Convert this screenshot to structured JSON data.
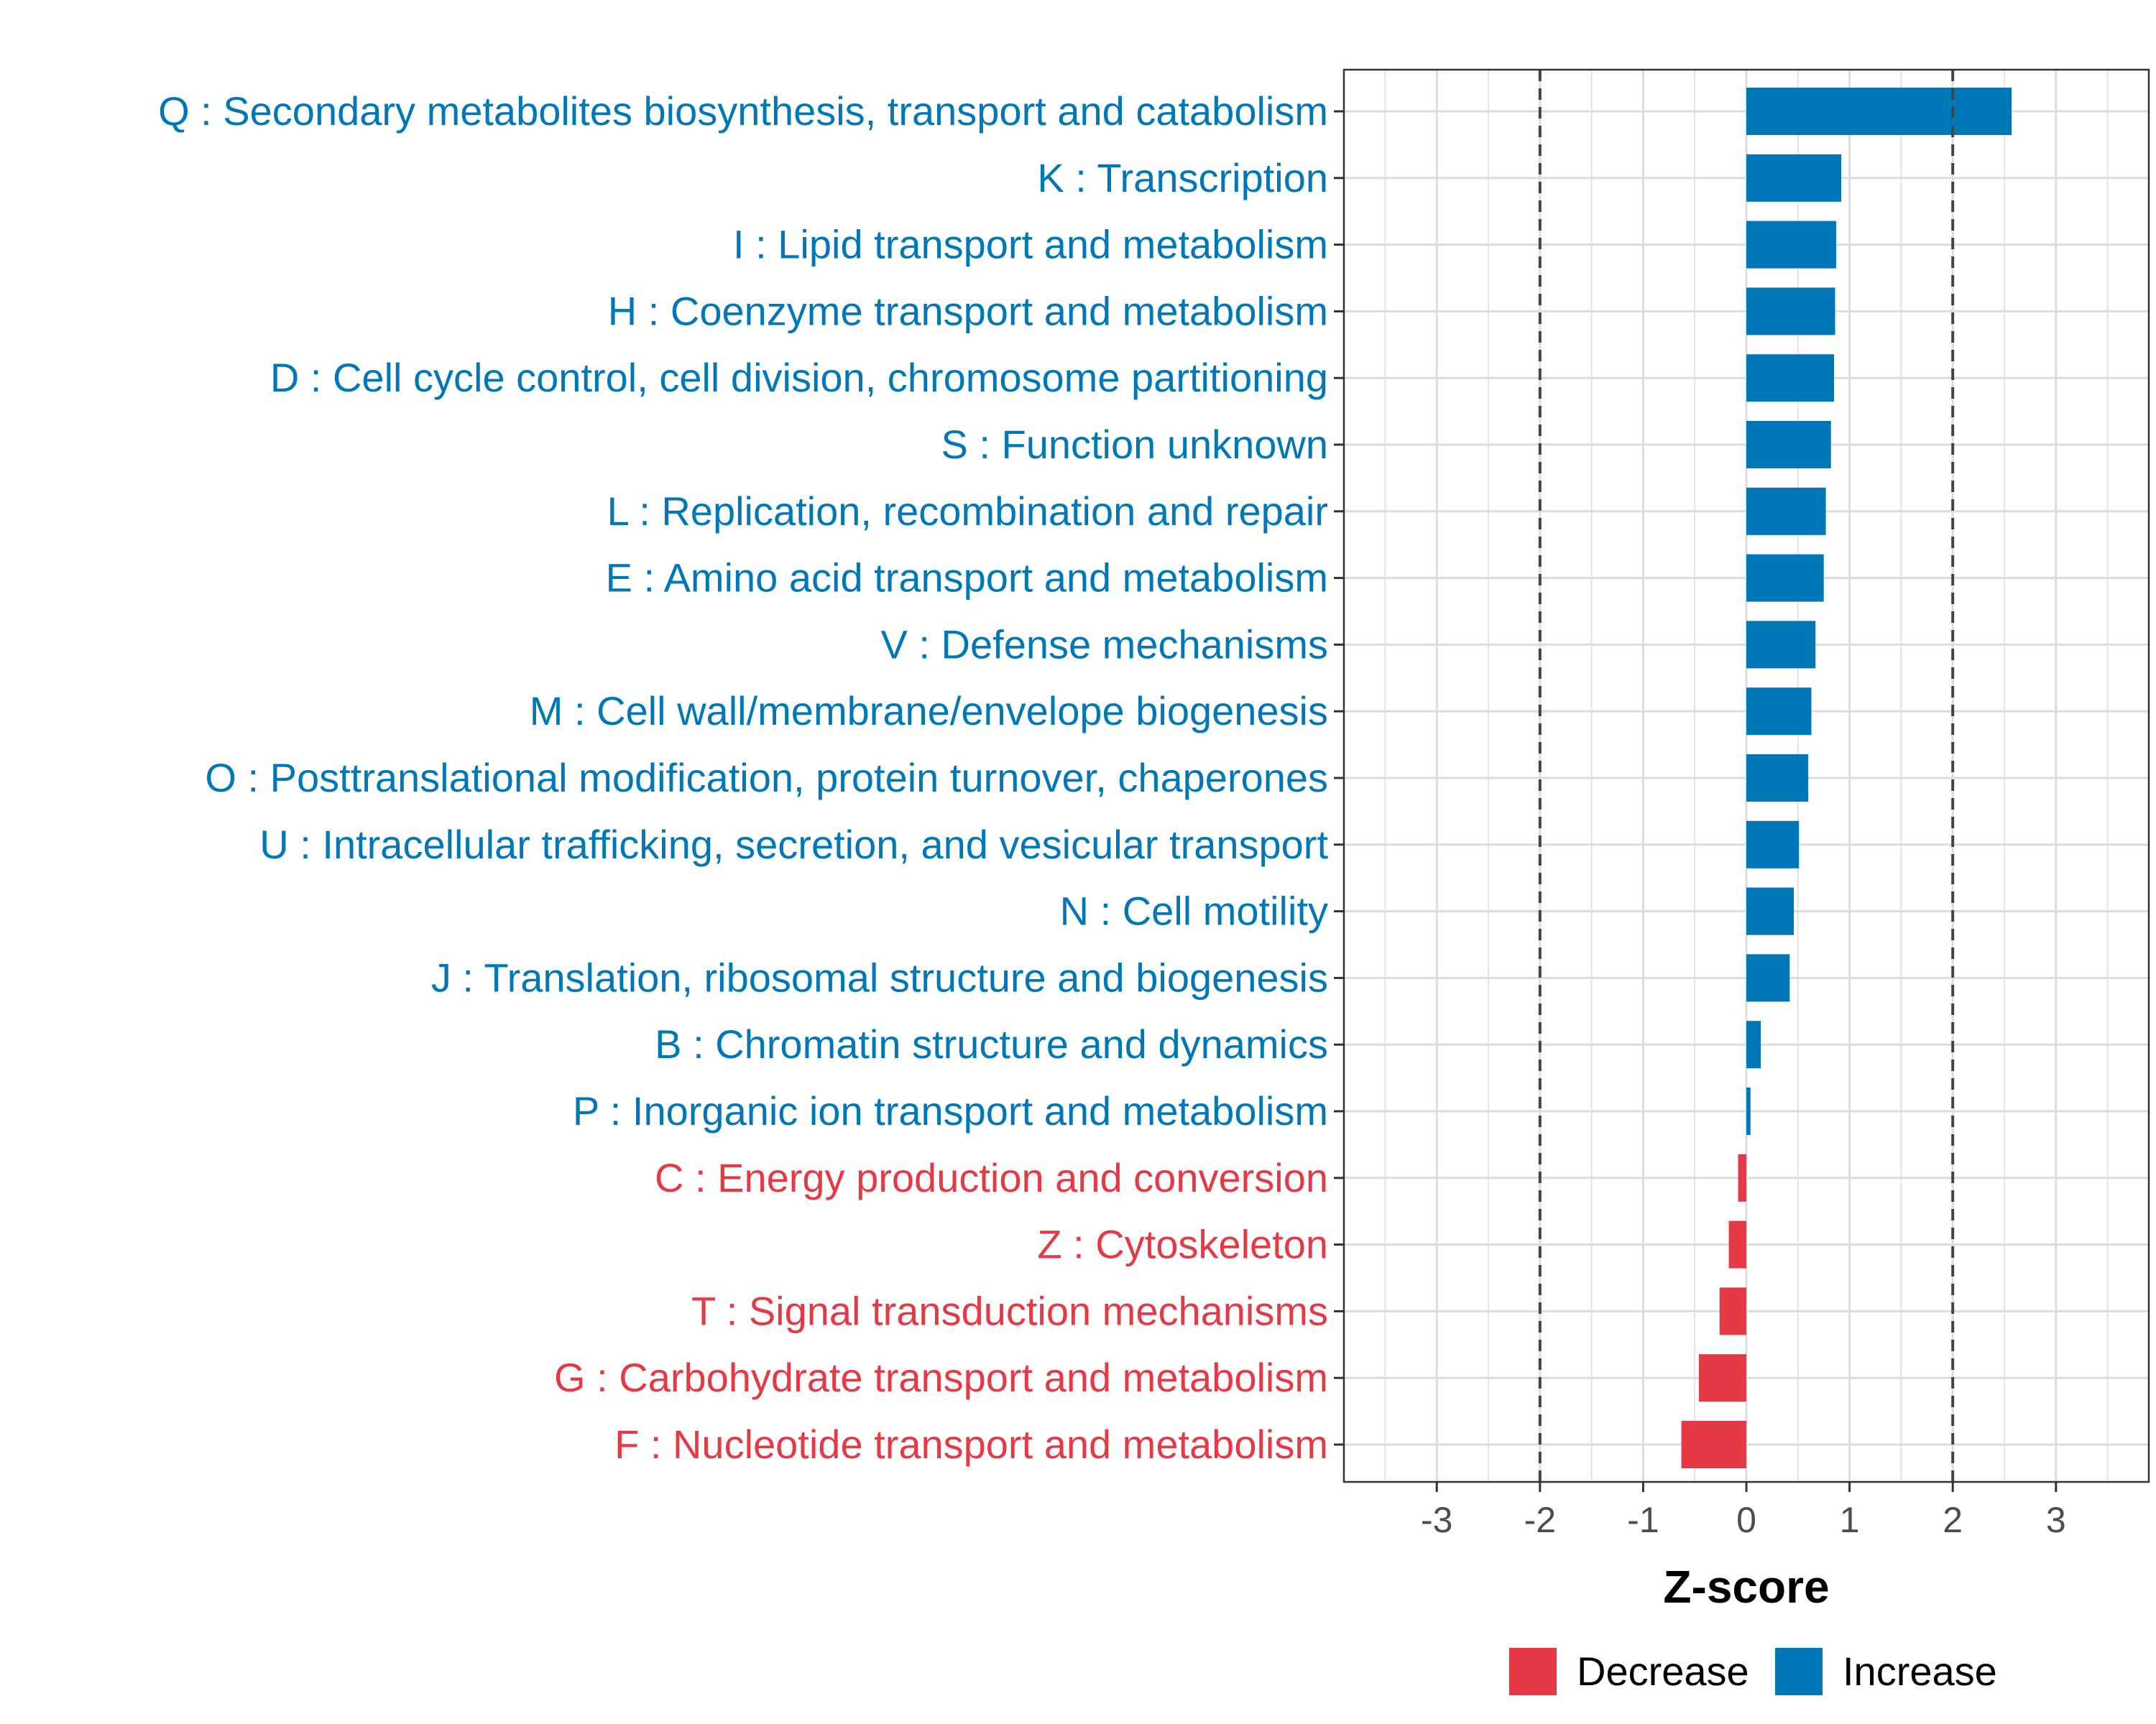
{
  "chart_data": {
    "type": "bar",
    "orientation": "horizontal",
    "title": "",
    "xlabel": "Z-score",
    "ylabel": "",
    "xlim": [
      -3.9,
      3.9
    ],
    "xticks": [
      -3,
      -2,
      -1,
      0,
      1,
      2,
      3
    ],
    "reference_lines": [
      -2,
      2
    ],
    "grid": true,
    "legend_position": "bottom",
    "colors": {
      "Decrease": "#e63946",
      "Increase": "#0077b6"
    },
    "legend": [
      {
        "name": "Decrease",
        "color": "#e63946"
      },
      {
        "name": "Increase",
        "color": "#0077b6"
      }
    ],
    "bars": [
      {
        "label": "Q : Secondary metabolites biosynthesis, transport and catabolism",
        "value": 2.57,
        "direction": "Increase"
      },
      {
        "label": "K : Transcription",
        "value": 0.92,
        "direction": "Increase"
      },
      {
        "label": "I : Lipid transport and metabolism",
        "value": 0.87,
        "direction": "Increase"
      },
      {
        "label": "H : Coenzyme transport and metabolism",
        "value": 0.86,
        "direction": "Increase"
      },
      {
        "label": "D : Cell cycle control, cell division, chromosome partitioning",
        "value": 0.85,
        "direction": "Increase"
      },
      {
        "label": "S : Function unknown",
        "value": 0.82,
        "direction": "Increase"
      },
      {
        "label": "L : Replication, recombination and repair",
        "value": 0.77,
        "direction": "Increase"
      },
      {
        "label": "E : Amino acid transport and metabolism",
        "value": 0.75,
        "direction": "Increase"
      },
      {
        "label": "V : Defense mechanisms",
        "value": 0.67,
        "direction": "Increase"
      },
      {
        "label": "M : Cell wall/membrane/envelope biogenesis",
        "value": 0.63,
        "direction": "Increase"
      },
      {
        "label": "O : Posttranslational modification, protein turnover, chaperones",
        "value": 0.6,
        "direction": "Increase"
      },
      {
        "label": "U : Intracellular trafficking, secretion, and vesicular transport",
        "value": 0.51,
        "direction": "Increase"
      },
      {
        "label": "N : Cell motility",
        "value": 0.46,
        "direction": "Increase"
      },
      {
        "label": "J : Translation, ribosomal structure and biogenesis",
        "value": 0.42,
        "direction": "Increase"
      },
      {
        "label": "B : Chromatin structure and dynamics",
        "value": 0.14,
        "direction": "Increase"
      },
      {
        "label": "P : Inorganic ion transport and metabolism",
        "value": 0.04,
        "direction": "Increase"
      },
      {
        "label": "C : Energy production and conversion",
        "value": -0.08,
        "direction": "Decrease"
      },
      {
        "label": "Z : Cytoskeleton",
        "value": -0.17,
        "direction": "Decrease"
      },
      {
        "label": "T : Signal transduction mechanisms",
        "value": -0.26,
        "direction": "Decrease"
      },
      {
        "label": "G : Carbohydrate transport and metabolism",
        "value": -0.46,
        "direction": "Decrease"
      },
      {
        "label": "F : Nucleotide transport and metabolism",
        "value": -0.63,
        "direction": "Decrease"
      }
    ]
  }
}
